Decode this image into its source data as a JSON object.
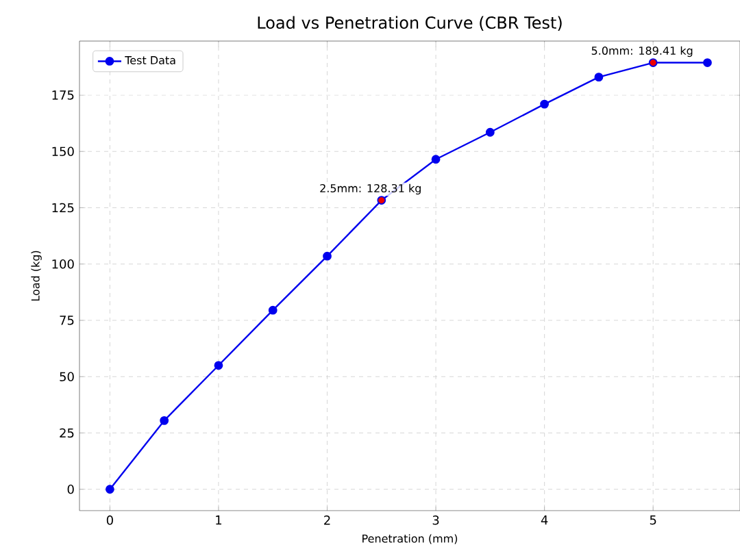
{
  "chart_data": {
    "type": "line",
    "title": "Load vs Penetration Curve (CBR Test)",
    "xlabel": "Penetration (mm)",
    "ylabel": "Load (kg)",
    "x": [
      0,
      0.5,
      1,
      1.5,
      2,
      2.5,
      3,
      3.5,
      4,
      4.5,
      5,
      5.5
    ],
    "series": [
      {
        "name": "Test Data",
        "color": "#0000ee",
        "values": [
          0,
          30.5,
          55,
          79.5,
          103.5,
          128.31,
          146.5,
          158.5,
          171,
          183,
          189.41,
          189.41
        ]
      },
      {
        "type": "scatter",
        "color": "#ee0000",
        "x": [
          2.5,
          5.0
        ],
        "values": [
          128.31,
          189.41
        ]
      }
    ],
    "annotations": [
      {
        "text": "2.5mm: 128.31 kg",
        "x": 2.5,
        "y": 128.31
      },
      {
        "text": "5.0mm: 189.41 kg",
        "x": 5.0,
        "y": 189.41
      }
    ],
    "xlim": [
      -0.28,
      5.8
    ],
    "ylim": [
      -9.5,
      199
    ],
    "xticks": [
      0,
      1,
      2,
      3,
      4,
      5
    ],
    "yticks": [
      0,
      25,
      50,
      75,
      100,
      125,
      150,
      175
    ],
    "grid": true,
    "legend": "top left",
    "marker": "circle",
    "line_style": "solid"
  }
}
